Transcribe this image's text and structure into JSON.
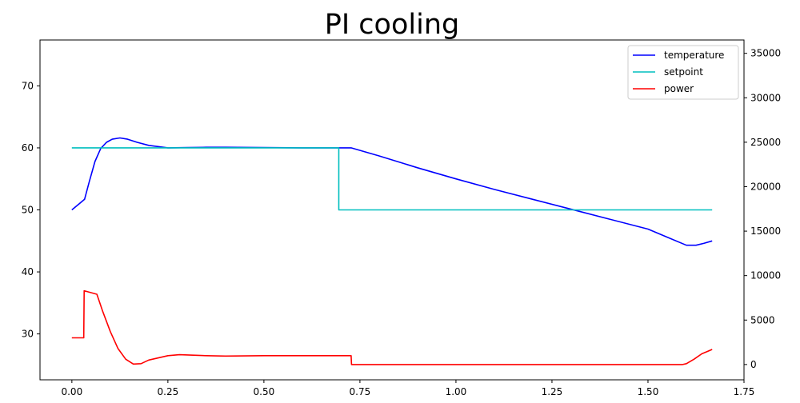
{
  "chart_data": {
    "type": "line",
    "title": "PI cooling",
    "xlabel": "",
    "ylabel": "",
    "y2label": "",
    "xlim": [
      -0.083,
      1.75
    ],
    "ylim": [
      22.6,
      77.4
    ],
    "y2lim": [
      -1720,
      36500
    ],
    "x_ticks": [
      0.0,
      0.25,
      0.5,
      0.75,
      1.0,
      1.25,
      1.5,
      1.75
    ],
    "x_tick_labels": [
      "0.00",
      "0.25",
      "0.50",
      "0.75",
      "1.00",
      "1.25",
      "1.50",
      "1.75"
    ],
    "y_ticks": [
      30,
      40,
      50,
      60,
      70
    ],
    "y_tick_labels": [
      "30",
      "40",
      "50",
      "60",
      "70"
    ],
    "y2_ticks": [
      0,
      5000,
      10000,
      15000,
      20000,
      25000,
      30000,
      35000
    ],
    "y2_tick_labels": [
      "0",
      "5000",
      "10000",
      "15000",
      "20000",
      "25000",
      "30000",
      "35000"
    ],
    "grid": false,
    "legend_position": "top-right",
    "series": [
      {
        "name": "temperature",
        "axis": "left",
        "color": "#0000ff",
        "points": [
          [
            0.0,
            50.0
          ],
          [
            0.033,
            51.7
          ],
          [
            0.045,
            54.5
          ],
          [
            0.06,
            57.8
          ],
          [
            0.075,
            59.9
          ],
          [
            0.09,
            60.9
          ],
          [
            0.105,
            61.4
          ],
          [
            0.125,
            61.6
          ],
          [
            0.145,
            61.4
          ],
          [
            0.17,
            60.9
          ],
          [
            0.2,
            60.4
          ],
          [
            0.25,
            60.0
          ],
          [
            0.3,
            60.05
          ],
          [
            0.35,
            60.1
          ],
          [
            0.4,
            60.1
          ],
          [
            0.5,
            60.05
          ],
          [
            0.6,
            60.0
          ],
          [
            0.727,
            60.0
          ],
          [
            0.8,
            58.7
          ],
          [
            0.9,
            56.8
          ],
          [
            1.0,
            55.0
          ],
          [
            1.1,
            53.3
          ],
          [
            1.2,
            51.7
          ],
          [
            1.3,
            50.1
          ],
          [
            1.4,
            48.5
          ],
          [
            1.5,
            46.9
          ],
          [
            1.55,
            45.6
          ],
          [
            1.6,
            44.3
          ],
          [
            1.625,
            44.3
          ],
          [
            1.645,
            44.6
          ],
          [
            1.667,
            45.0
          ]
        ]
      },
      {
        "name": "setpoint",
        "axis": "left",
        "color": "#00bfbf",
        "points": [
          [
            0.0,
            60.0
          ],
          [
            0.695,
            60.0
          ],
          [
            0.695,
            50.0
          ],
          [
            1.667,
            50.0
          ]
        ]
      },
      {
        "name": "power",
        "axis": "right",
        "color": "#ff0000",
        "points": [
          [
            0.0,
            3000
          ],
          [
            0.031,
            3000
          ],
          [
            0.032,
            8300
          ],
          [
            0.065,
            7900
          ],
          [
            0.08,
            6000
          ],
          [
            0.1,
            3700
          ],
          [
            0.12,
            1800
          ],
          [
            0.14,
            600
          ],
          [
            0.16,
            50
          ],
          [
            0.18,
            100
          ],
          [
            0.2,
            500
          ],
          [
            0.25,
            1000
          ],
          [
            0.28,
            1100
          ],
          [
            0.35,
            1000
          ],
          [
            0.4,
            950
          ],
          [
            0.5,
            1000
          ],
          [
            0.6,
            1000
          ],
          [
            0.727,
            1000
          ],
          [
            0.728,
            0
          ],
          [
            1.59,
            0
          ],
          [
            1.6,
            100
          ],
          [
            1.62,
            600
          ],
          [
            1.64,
            1200
          ],
          [
            1.667,
            1700
          ]
        ]
      }
    ]
  }
}
